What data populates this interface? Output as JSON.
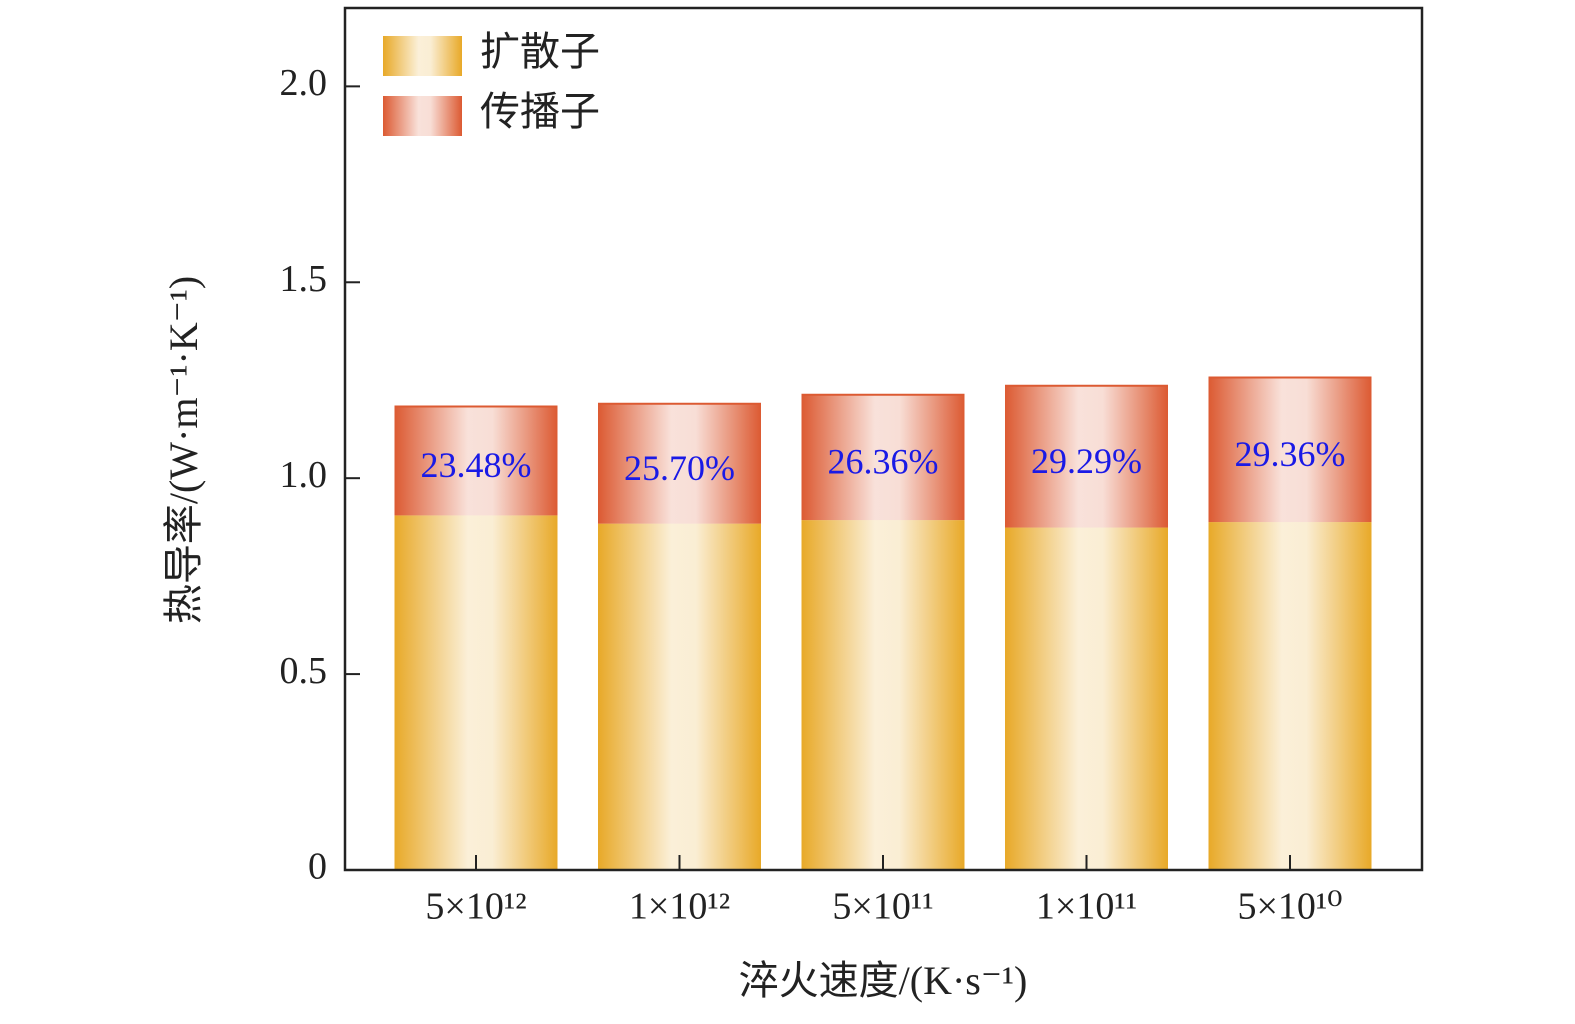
{
  "chart_data": {
    "type": "stacked_bar",
    "categories": [
      "5×10¹²",
      "1×10¹²",
      "5×10¹¹",
      "1×10¹¹",
      "5×10¹⁰"
    ],
    "series": [
      {
        "name": "扩散子",
        "color": "#e8a928",
        "values": [
          0.905,
          0.884,
          0.893,
          0.874,
          0.888
        ]
      },
      {
        "name": "传播子",
        "color": "#dc5a32",
        "values": [
          0.278,
          0.306,
          0.32,
          0.362,
          0.369
        ]
      }
    ],
    "annotations": [
      "23.48%",
      "25.70%",
      "26.36%",
      "29.29%",
      "29.36%"
    ],
    "xlabel": "淬火速度/(K·s⁻¹)",
    "ylabel": "热导率/(W·m⁻¹·K⁻¹)",
    "ylim": [
      0,
      2.2
    ],
    "yticks": [
      0,
      0.5,
      {
        "value": 1,
        "label": "1.0"
      },
      1.5,
      {
        "value": 2,
        "label": "2.0"
      }
    ],
    "legend": "upper left"
  }
}
